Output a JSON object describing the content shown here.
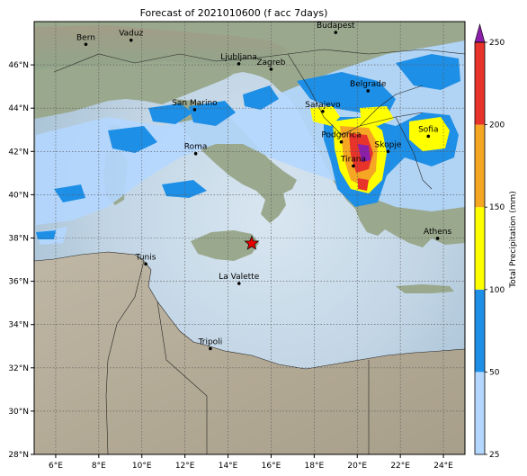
{
  "map": {
    "title": "Forecast of 2021010600 (f acc 7days)",
    "lon_range": [
      5,
      25
    ],
    "lat_range": [
      28,
      48
    ],
    "x_ticks": [
      "6°E",
      "8°E",
      "10°E",
      "12°E",
      "14°E",
      "16°E",
      "18°E",
      "20°E",
      "22°E",
      "24°E"
    ],
    "y_ticks": [
      "28°N",
      "30°N",
      "32°N",
      "34°N",
      "36°N",
      "38°N",
      "40°N",
      "42°N",
      "44°N",
      "46°N"
    ],
    "grid": "dotted",
    "cities": [
      {
        "name": "Bern",
        "lon": 7.4,
        "lat": 46.95
      },
      {
        "name": "Vaduz",
        "lon": 9.5,
        "lat": 47.14
      },
      {
        "name": "Budapest",
        "lon": 19.0,
        "lat": 47.5
      },
      {
        "name": "Ljubljana",
        "lon": 14.5,
        "lat": 46.05
      },
      {
        "name": "Zagreb",
        "lon": 16.0,
        "lat": 45.8
      },
      {
        "name": "Belgrade",
        "lon": 20.5,
        "lat": 44.8
      },
      {
        "name": "San Marino",
        "lon": 12.45,
        "lat": 43.93
      },
      {
        "name": "Sarajevo",
        "lon": 18.4,
        "lat": 43.85
      },
      {
        "name": "Sofia",
        "lon": 23.3,
        "lat": 42.7
      },
      {
        "name": "Podgorica",
        "lon": 19.26,
        "lat": 42.44
      },
      {
        "name": "Skopje",
        "lon": 21.43,
        "lat": 42.0
      },
      {
        "name": "Roma",
        "lon": 12.5,
        "lat": 41.9
      },
      {
        "name": "Tirana",
        "lon": 19.82,
        "lat": 41.33
      },
      {
        "name": "Athens",
        "lon": 23.73,
        "lat": 37.98
      },
      {
        "name": "Tunis",
        "lon": 10.18,
        "lat": 36.8
      },
      {
        "name": "La Valette",
        "lon": 14.51,
        "lat": 35.9
      },
      {
        "name": "Tripoli",
        "lon": 13.18,
        "lat": 32.89
      }
    ],
    "marker": {
      "name": "star-marker",
      "lon": 15.1,
      "lat": 37.75,
      "color": "#e60000"
    }
  },
  "colorbar": {
    "label": "Total Precipitation (mm)",
    "levels": [
      25,
      50,
      100,
      150,
      200,
      250
    ],
    "tick_labels": [
      "25",
      "50",
      "100",
      "150",
      "200",
      "250"
    ],
    "colors": [
      "#b4d7ff",
      "#1e8fe6",
      "#ffff00",
      "#f5a623",
      "#e8332a",
      "#8b1fa9"
    ]
  }
}
